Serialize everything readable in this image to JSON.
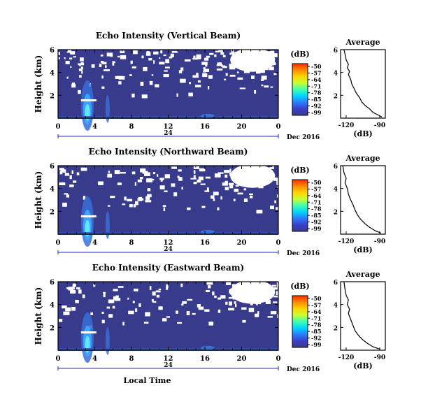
{
  "date_label": "Dec 2016",
  "date_day": "24",
  "xlabel": "Local Time",
  "colorbar": {
    "unit": "(dB)",
    "ticks": [
      "-50",
      "-57",
      "-64",
      "-71",
      "-78",
      "-85",
      "-92",
      "-99"
    ],
    "colors": [
      "#ff2a00",
      "#ff8a00",
      "#ffd400",
      "#c8ff30",
      "#40ffb0",
      "#00d6ff",
      "#2a7cff",
      "#3a3ec8",
      "#383b8c"
    ],
    "background_color": "#383b8c"
  },
  "chart_data": [
    {
      "type": "heatmap",
      "title": "Echo Intensity (Vertical Beam)",
      "ylabel": "Height (km)",
      "x_ticks": [
        "0",
        "4",
        "8",
        "12",
        "16",
        "20",
        "0"
      ],
      "y_ticks": [
        "2",
        "4",
        "6"
      ],
      "xlim": [
        0,
        24
      ],
      "ylim": [
        0,
        6
      ],
      "profile": {
        "title": "Average",
        "xlabel": "(dB)",
        "x_ticks": [
          "-120",
          "-90"
        ],
        "y_ticks": [
          "2",
          "4",
          "6"
        ],
        "xlim": [
          -125,
          -85
        ],
        "ylim": [
          0,
          6
        ],
        "points": [
          [
            -88,
            0.1
          ],
          [
            -92,
            0.3
          ],
          [
            -96,
            0.5
          ],
          [
            -99,
            0.8
          ],
          [
            -103,
            1.1
          ],
          [
            -106,
            1.4
          ],
          [
            -108,
            1.8
          ],
          [
            -111,
            2.2
          ],
          [
            -113,
            2.6
          ],
          [
            -115,
            3.0
          ],
          [
            -116,
            3.4
          ],
          [
            -118,
            3.8
          ],
          [
            -117,
            4.1
          ],
          [
            -119,
            4.4
          ],
          [
            -118,
            4.7
          ],
          [
            -120,
            5.1
          ],
          [
            -121,
            5.6
          ],
          [
            -122,
            6.0
          ]
        ]
      }
    },
    {
      "type": "heatmap",
      "title": "Echo Intensity (Northward Beam)",
      "ylabel": "Height (km)",
      "x_ticks": [
        "0",
        "4",
        "8",
        "12",
        "16",
        "20",
        "0"
      ],
      "y_ticks": [
        "2",
        "4",
        "6"
      ],
      "xlim": [
        0,
        24
      ],
      "ylim": [
        0,
        6
      ],
      "profile": {
        "title": "Average",
        "xlabel": "(dB)",
        "x_ticks": [
          "-120",
          "-90"
        ],
        "y_ticks": [
          "2",
          "4",
          "6"
        ],
        "xlim": [
          -125,
          -85
        ],
        "ylim": [
          0,
          6
        ],
        "points": [
          [
            -89,
            0.1
          ],
          [
            -94,
            0.3
          ],
          [
            -99,
            0.6
          ],
          [
            -103,
            0.9
          ],
          [
            -107,
            1.3
          ],
          [
            -110,
            1.7
          ],
          [
            -112,
            2.1
          ],
          [
            -114,
            2.6
          ],
          [
            -116,
            3.0
          ],
          [
            -118,
            3.5
          ],
          [
            -119,
            4.0
          ],
          [
            -121,
            4.5
          ],
          [
            -120,
            4.9
          ],
          [
            -122,
            5.4
          ],
          [
            -123,
            6.0
          ]
        ]
      }
    },
    {
      "type": "heatmap",
      "title": "Echo Intensity (Eastward Beam)",
      "ylabel": "Height (km)",
      "x_ticks": [
        "0",
        "4",
        "8",
        "12",
        "16",
        "20",
        "0"
      ],
      "y_ticks": [
        "2",
        "4",
        "6"
      ],
      "xlim": [
        0,
        24
      ],
      "ylim": [
        0,
        6
      ],
      "profile": {
        "title": "Average",
        "xlabel": "(dB)",
        "x_ticks": [
          "-120",
          "-90"
        ],
        "y_ticks": [
          "2",
          "4",
          "6"
        ],
        "xlim": [
          -125,
          -85
        ],
        "ylim": [
          0,
          6
        ],
        "points": [
          [
            -90,
            0.1
          ],
          [
            -96,
            0.3
          ],
          [
            -101,
            0.6
          ],
          [
            -105,
            0.9
          ],
          [
            -109,
            1.3
          ],
          [
            -112,
            1.7
          ],
          [
            -114,
            2.2
          ],
          [
            -116,
            2.7
          ],
          [
            -118,
            3.2
          ],
          [
            -117,
            3.6
          ],
          [
            -119,
            4.0
          ],
          [
            -118,
            4.4
          ],
          [
            -120,
            4.8
          ],
          [
            -121,
            5.3
          ],
          [
            -122,
            6.0
          ]
        ]
      }
    }
  ]
}
